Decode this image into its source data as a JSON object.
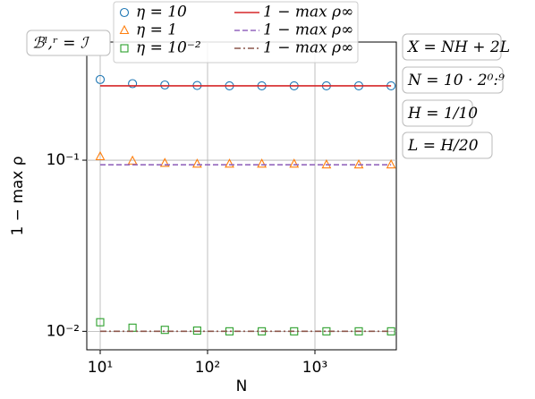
{
  "chart_data": {
    "type": "scatter",
    "x_label": "N",
    "y_label": "1 − max ρ",
    "x": [
      10,
      20,
      40,
      80,
      160,
      320,
      640,
      1280,
      2560,
      5120
    ],
    "series": [
      {
        "name": "η = 10",
        "color": "#1f77b4",
        "marker": "circle",
        "values": [
          0.296,
          0.28,
          0.275,
          0.273,
          0.272,
          0.272,
          0.272,
          0.272,
          0.272,
          0.272
        ]
      },
      {
        "name": "η = 1",
        "color": "#ff7f0e",
        "marker": "triangle",
        "values": [
          0.105,
          0.099,
          0.096,
          0.095,
          0.095,
          0.095,
          0.095,
          0.094,
          0.094,
          0.094
        ]
      },
      {
        "name": "η = 10⁻²",
        "color": "#2ca02c",
        "marker": "square",
        "values": [
          0.0113,
          0.0105,
          0.0102,
          0.0101,
          0.01,
          0.01,
          0.01,
          0.01,
          0.01,
          0.01
        ]
      },
      {
        "name": "1 − max ρ∞",
        "color": "#d62728",
        "linestyle": "solid",
        "values": [
          0.272,
          0.272,
          0.272,
          0.272,
          0.272,
          0.272,
          0.272,
          0.272,
          0.272,
          0.272
        ]
      },
      {
        "name": "1 − max ρ∞",
        "color": "#9467bd",
        "linestyle": "dashed",
        "values": [
          0.094,
          0.094,
          0.094,
          0.094,
          0.094,
          0.094,
          0.094,
          0.094,
          0.094,
          0.094
        ]
      },
      {
        "name": "1 − max ρ∞",
        "color": "#8c564b",
        "linestyle": "dashdot",
        "values": [
          0.01,
          0.01,
          0.01,
          0.01,
          0.01,
          0.01,
          0.01,
          0.01,
          0.01,
          0.01
        ]
      }
    ],
    "xscale": "log",
    "yscale": "log",
    "xlim": [
      7.5,
      5730
    ],
    "ylim": [
      0.0078,
      0.49
    ],
    "xticks": [
      {
        "value": 10,
        "label": "10¹"
      },
      {
        "value": 100,
        "label": "10²"
      },
      {
        "value": 1000,
        "label": "10³"
      }
    ],
    "yticks": [
      {
        "value": 0.01,
        "label": "10⁻²"
      },
      {
        "value": 0.1,
        "label": "10⁻¹"
      }
    ],
    "grid": true,
    "annotations": [
      "ℬˡ,ʳ = ℐ",
      "X = NH + 2L",
      "N = 10 · 2⁰:⁹",
      "H = 1/10",
      "L = H/20"
    ]
  }
}
